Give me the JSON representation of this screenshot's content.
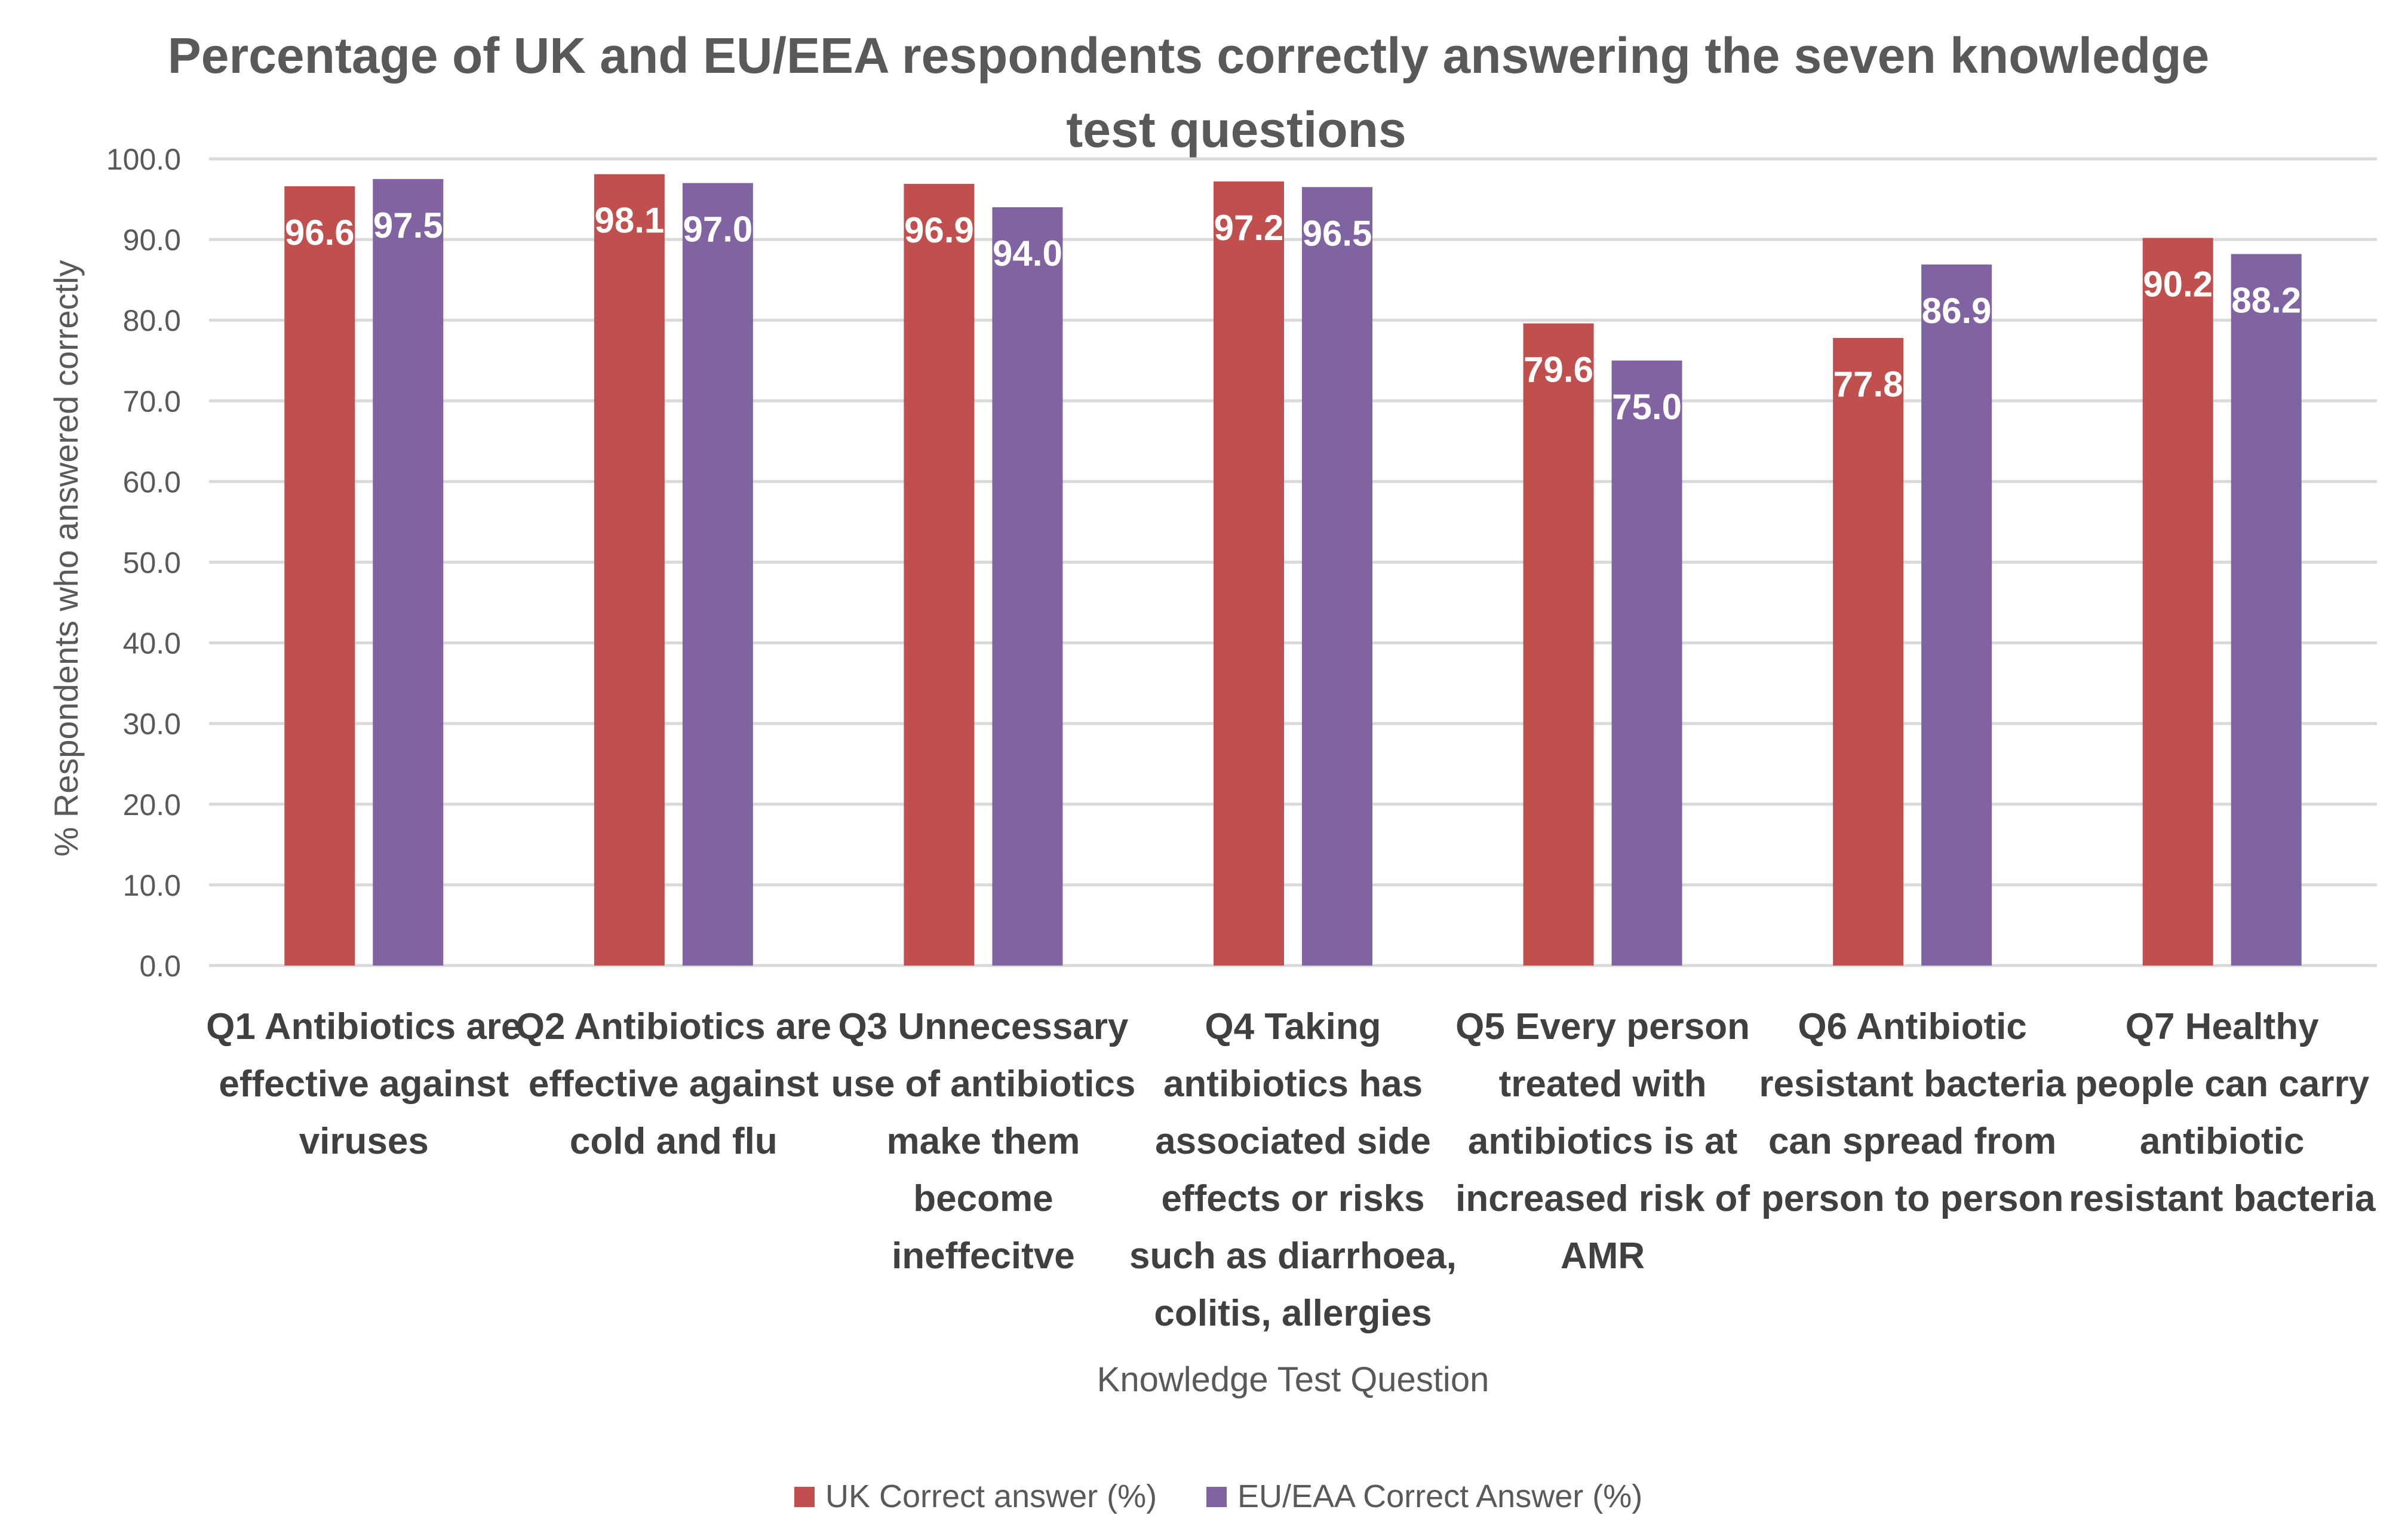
{
  "chart_data": {
    "type": "bar",
    "title": "Percentage of UK and EU/EEA respondents correctly answering the seven knowledge test questions",
    "title_lines": [
      "Percentage of UK and EU/EEA respondents correctly answering the seven knowledge",
      "test questions"
    ],
    "xlabel": "Knowledge Test Question",
    "ylabel": "% Respondents who answered correctly",
    "ylim": [
      0,
      100
    ],
    "yticks": [
      0,
      10,
      20,
      30,
      40,
      50,
      60,
      70,
      80,
      90,
      100
    ],
    "grid": true,
    "legend_position": "bottom",
    "categories": [
      [
        "Q1 Antibiotics are",
        "effective against",
        "viruses"
      ],
      [
        "Q2 Antibiotics are",
        "effective against",
        "cold and flu"
      ],
      [
        "Q3 Unnecessary",
        "use of antibiotics",
        "make them",
        "become",
        "ineffecitve"
      ],
      [
        "Q4 Taking",
        "antibiotics has",
        "associated side",
        "effects or risks",
        "such as diarrhoea,",
        "colitis, allergies"
      ],
      [
        "Q5 Every person",
        "treated with",
        "antibiotics is at",
        "increased risk of",
        "AMR"
      ],
      [
        "Q6 Antibiotic",
        "resistant bacteria",
        "can spread from",
        "person to person"
      ],
      [
        "Q7 Healthy",
        "people can carry",
        "antibiotic",
        "resistant bacteria"
      ]
    ],
    "series": [
      {
        "name": "UK Correct answer (%)",
        "color": "#c0504d",
        "values": [
          96.6,
          98.1,
          96.9,
          97.2,
          79.6,
          77.8,
          90.2
        ]
      },
      {
        "name": "EU/EAA Correct Answer (%)",
        "color": "#8064a2",
        "values": [
          97.5,
          97.0,
          94.0,
          96.5,
          75.0,
          86.9,
          88.2
        ]
      }
    ]
  }
}
